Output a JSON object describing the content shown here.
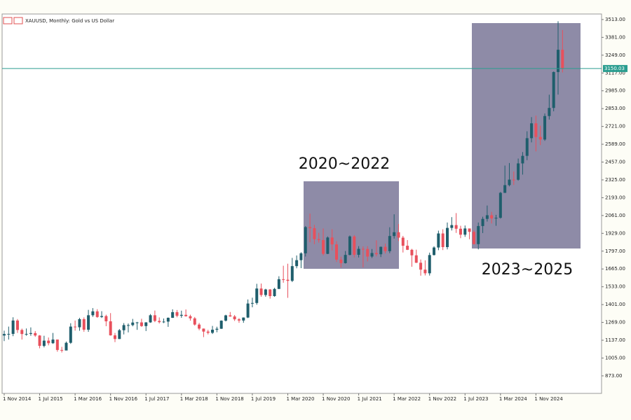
{
  "chart_data": {
    "type": "candlestick",
    "title": "XAUUSD, Monthly:  Gold vs US Dollar",
    "x": [
      "2014-11-01",
      "2014-12-01",
      "2015-01-01",
      "2015-02-01",
      "2015-03-01",
      "2015-04-01",
      "2015-05-01",
      "2015-06-01",
      "2015-07-01",
      "2015-08-01",
      "2015-09-01",
      "2015-10-01",
      "2015-11-01",
      "2015-12-01",
      "2016-01-01",
      "2016-02-01",
      "2016-03-01",
      "2016-04-01",
      "2016-05-01",
      "2016-06-01",
      "2016-07-01",
      "2016-08-01",
      "2016-09-01",
      "2016-10-01",
      "2016-11-01",
      "2016-12-01",
      "2017-01-01",
      "2017-02-01",
      "2017-03-01",
      "2017-04-01",
      "2017-05-01",
      "2017-06-01",
      "2017-07-01",
      "2017-08-01",
      "2017-09-01",
      "2017-10-01",
      "2017-11-01",
      "2017-12-01",
      "2018-01-01",
      "2018-02-01",
      "2018-03-01",
      "2018-04-01",
      "2018-05-01",
      "2018-06-01",
      "2018-07-01",
      "2018-08-01",
      "2018-09-01",
      "2018-10-01",
      "2018-11-01",
      "2018-12-01",
      "2019-01-01",
      "2019-02-01",
      "2019-03-01",
      "2019-04-01",
      "2019-05-01",
      "2019-06-01",
      "2019-07-01",
      "2019-08-01",
      "2019-09-01",
      "2019-10-01",
      "2019-11-01",
      "2019-12-01",
      "2020-01-01",
      "2020-02-01",
      "2020-03-01",
      "2020-04-01",
      "2020-05-01",
      "2020-06-01",
      "2020-07-01",
      "2020-08-01",
      "2020-09-01",
      "2020-10-01",
      "2020-11-01",
      "2020-12-01",
      "2021-01-01",
      "2021-02-01",
      "2021-03-01",
      "2021-04-01",
      "2021-05-01",
      "2021-06-01",
      "2021-07-01",
      "2021-08-01",
      "2021-09-01",
      "2021-10-01",
      "2021-11-01",
      "2021-12-01",
      "2022-01-01",
      "2022-02-01",
      "2022-03-01",
      "2022-04-01",
      "2022-05-01",
      "2022-06-01",
      "2022-07-01",
      "2022-08-01",
      "2022-09-01",
      "2022-10-01",
      "2022-11-01",
      "2022-12-01",
      "2023-01-01",
      "2023-02-01",
      "2023-03-01",
      "2023-04-01",
      "2023-05-01",
      "2023-06-01",
      "2023-07-01",
      "2023-08-01",
      "2023-09-01",
      "2023-10-01",
      "2023-11-01",
      "2023-12-01",
      "2024-01-01",
      "2024-02-01",
      "2024-03-01",
      "2024-04-01",
      "2024-05-01",
      "2024-06-01",
      "2024-07-01",
      "2024-08-01",
      "2024-09-01",
      "2024-10-01",
      "2024-11-01",
      "2024-12-01",
      "2025-01-01",
      "2025-02-01",
      "2025-03-01",
      "2025-04-01",
      "2025-05-01"
    ],
    "open": [
      1172,
      1183,
      1184,
      1283,
      1213,
      1183,
      1184,
      1190,
      1172,
      1095,
      1134,
      1115,
      1142,
      1065,
      1061,
      1118,
      1238,
      1233,
      1293,
      1215,
      1322,
      1351,
      1309,
      1316,
      1277,
      1173,
      1146,
      1211,
      1249,
      1249,
      1268,
      1269,
      1242,
      1269,
      1322,
      1280,
      1271,
      1275,
      1303,
      1345,
      1318,
      1325,
      1315,
      1299,
      1253,
      1223,
      1201,
      1192,
      1215,
      1222,
      1282,
      1321,
      1313,
      1292,
      1283,
      1305,
      1409,
      1413,
      1520,
      1472,
      1513,
      1464,
      1517,
      1589,
      1585,
      1577,
      1686,
      1730,
      1781,
      1975,
      1967,
      1886,
      1879,
      1777,
      1898,
      1847,
      1734,
      1708,
      1769,
      1906,
      1770,
      1814,
      1813,
      1757,
      1783,
      1774,
      1829,
      1797,
      1909,
      1937,
      1897,
      1837,
      1807,
      1766,
      1711,
      1660,
      1633,
      1768,
      1824,
      1928,
      1827,
      1969,
      1990,
      1963,
      1919,
      1965,
      1940,
      1849,
      1983,
      2036,
      2063,
      2039,
      2044,
      2229,
      2286,
      2327,
      2326,
      2447,
      2503,
      2634,
      2744,
      2643,
      2624,
      2798,
      2858,
      3124,
      3289
    ],
    "high": [
      1208,
      1238,
      1307,
      1294,
      1223,
      1224,
      1232,
      1205,
      1175,
      1170,
      1157,
      1191,
      1142,
      1088,
      1127,
      1263,
      1283,
      1303,
      1306,
      1362,
      1375,
      1367,
      1352,
      1326,
      1338,
      1191,
      1220,
      1264,
      1261,
      1295,
      1273,
      1296,
      1271,
      1331,
      1357,
      1306,
      1298,
      1306,
      1366,
      1361,
      1356,
      1365,
      1326,
      1309,
      1265,
      1224,
      1214,
      1243,
      1237,
      1284,
      1326,
      1346,
      1324,
      1301,
      1306,
      1439,
      1452,
      1555,
      1557,
      1518,
      1516,
      1525,
      1611,
      1689,
      1704,
      1747,
      1765,
      1789,
      1983,
      2075,
      1992,
      1933,
      1965,
      1906,
      1959,
      1871,
      1756,
      1798,
      1913,
      1916,
      1834,
      1832,
      1834,
      1813,
      1877,
      1831,
      1853,
      1974,
      2070,
      1998,
      1910,
      1879,
      1814,
      1808,
      1735,
      1729,
      1786,
      1833,
      1949,
      1959,
      2009,
      2049,
      2079,
      1985,
      1987,
      1949,
      1953,
      2009,
      2052,
      2135,
      2088,
      2066,
      2236,
      2431,
      2450,
      2387,
      2483,
      2531,
      2685,
      2790,
      2801,
      2726,
      2817,
      2956,
      3128,
      3500,
      3435
    ],
    "low": [
      1131,
      1142,
      1167,
      1191,
      1142,
      1170,
      1170,
      1162,
      1077,
      1084,
      1099,
      1110,
      1052,
      1046,
      1062,
      1110,
      1208,
      1207,
      1200,
      1199,
      1310,
      1303,
      1302,
      1241,
      1171,
      1123,
      1146,
      1180,
      1195,
      1240,
      1214,
      1236,
      1205,
      1266,
      1271,
      1261,
      1264,
      1236,
      1302,
      1307,
      1303,
      1312,
      1282,
      1245,
      1211,
      1160,
      1180,
      1183,
      1196,
      1221,
      1276,
      1311,
      1280,
      1266,
      1266,
      1301,
      1381,
      1400,
      1459,
      1459,
      1445,
      1459,
      1517,
      1563,
      1451,
      1568,
      1670,
      1671,
      1757,
      1863,
      1849,
      1860,
      1765,
      1775,
      1802,
      1717,
      1676,
      1705,
      1766,
      1750,
      1750,
      1677,
      1721,
      1746,
      1758,
      1753,
      1780,
      1782,
      1890,
      1872,
      1787,
      1805,
      1681,
      1709,
      1615,
      1617,
      1616,
      1765,
      1804,
      1805,
      1810,
      1950,
      1932,
      1893,
      1903,
      1885,
      1846,
      1810,
      1931,
      2016,
      2002,
      1985,
      2038,
      2228,
      2277,
      2287,
      2319,
      2364,
      2471,
      2603,
      2536,
      2583,
      2614,
      2772,
      2833,
      2957,
      3121
    ],
    "close": [
      1183,
      1184,
      1283,
      1213,
      1183,
      1184,
      1190,
      1172,
      1095,
      1134,
      1115,
      1142,
      1065,
      1061,
      1118,
      1238,
      1233,
      1293,
      1215,
      1322,
      1351,
      1309,
      1316,
      1277,
      1173,
      1146,
      1211,
      1249,
      1249,
      1268,
      1269,
      1242,
      1269,
      1322,
      1280,
      1271,
      1275,
      1303,
      1345,
      1318,
      1325,
      1315,
      1299,
      1253,
      1223,
      1201,
      1192,
      1215,
      1222,
      1282,
      1321,
      1313,
      1292,
      1283,
      1305,
      1409,
      1413,
      1520,
      1472,
      1513,
      1464,
      1517,
      1589,
      1585,
      1577,
      1686,
      1730,
      1781,
      1975,
      1967,
      1886,
      1879,
      1777,
      1898,
      1847,
      1734,
      1708,
      1769,
      1906,
      1770,
      1814,
      1813,
      1757,
      1783,
      1774,
      1829,
      1797,
      1909,
      1937,
      1897,
      1837,
      1807,
      1766,
      1711,
      1660,
      1633,
      1768,
      1824,
      1928,
      1827,
      1969,
      1990,
      1963,
      1919,
      1965,
      1940,
      1849,
      1983,
      2036,
      2063,
      2039,
      2044,
      2229,
      2286,
      2327,
      2326,
      2447,
      2503,
      2634,
      2744,
      2643,
      2624,
      2798,
      2858,
      3124,
      3289,
      3150
    ],
    "colors": {
      "up": "#1f5e6c",
      "down": "#e8505c"
    },
    "ylim": [
      743,
      3554
    ],
    "yticks": [
      {
        "value": 873,
        "label": "873.00"
      },
      {
        "value": 1005,
        "label": "1005.00"
      },
      {
        "value": 1137,
        "label": "1137.00"
      },
      {
        "value": 1269,
        "label": "1269.00"
      },
      {
        "value": 1401,
        "label": "1401.00"
      },
      {
        "value": 1533,
        "label": "1533.00"
      },
      {
        "value": 1665,
        "label": "1665.00"
      },
      {
        "value": 1797,
        "label": "1797.00"
      },
      {
        "value": 1929,
        "label": "1929.00"
      },
      {
        "value": 2061,
        "label": "2061.00"
      },
      {
        "value": 2193,
        "label": "2193.00"
      },
      {
        "value": 2325,
        "label": "2325.00"
      },
      {
        "value": 2457,
        "label": "2457.00"
      },
      {
        "value": 2589,
        "label": "2589.00"
      },
      {
        "value": 2721,
        "label": "2721.00"
      },
      {
        "value": 2853,
        "label": "2853.00"
      },
      {
        "value": 2985,
        "label": "2985.00"
      },
      {
        "value": 3117,
        "label": "3117.00"
      },
      {
        "value": 3249,
        "label": "3249.00"
      },
      {
        "value": 3381,
        "label": "3381.00"
      },
      {
        "value": 3513,
        "label": "3513.00"
      }
    ],
    "xticks": [
      {
        "value": "2014-11-01",
        "label": "1 Nov 2014"
      },
      {
        "value": "2015-07-01",
        "label": "1 Jul 2015"
      },
      {
        "value": "2016-03-01",
        "label": "1 Mar 2016"
      },
      {
        "value": "2016-11-01",
        "label": "1 Nov 2016"
      },
      {
        "value": "2017-07-01",
        "label": "1 Jul 2017"
      },
      {
        "value": "2018-03-01",
        "label": "1 Mar 2018"
      },
      {
        "value": "2018-11-01",
        "label": "1 Nov 2018"
      },
      {
        "value": "2019-07-01",
        "label": "1 Jul 2019"
      },
      {
        "value": "2020-03-01",
        "label": "1 Mar 2020"
      },
      {
        "value": "2020-11-01",
        "label": "1 Nov 2020"
      },
      {
        "value": "2021-07-01",
        "label": "1 Jul 2021"
      },
      {
        "value": "2022-03-01",
        "label": "1 Mar 2022"
      },
      {
        "value": "2022-11-01",
        "label": "1 Nov 2022"
      },
      {
        "value": "2023-07-01",
        "label": "1 Jul 2023"
      },
      {
        "value": "2024-03-01",
        "label": "1 Mar 2024"
      },
      {
        "value": "2024-11-01",
        "label": "1 Nov 2024"
      }
    ],
    "price_line": {
      "value": 3150.03,
      "label": "3150.03",
      "color": "#2a9d8f"
    },
    "annotations": [
      "2020~2022",
      "2023~2025"
    ]
  }
}
